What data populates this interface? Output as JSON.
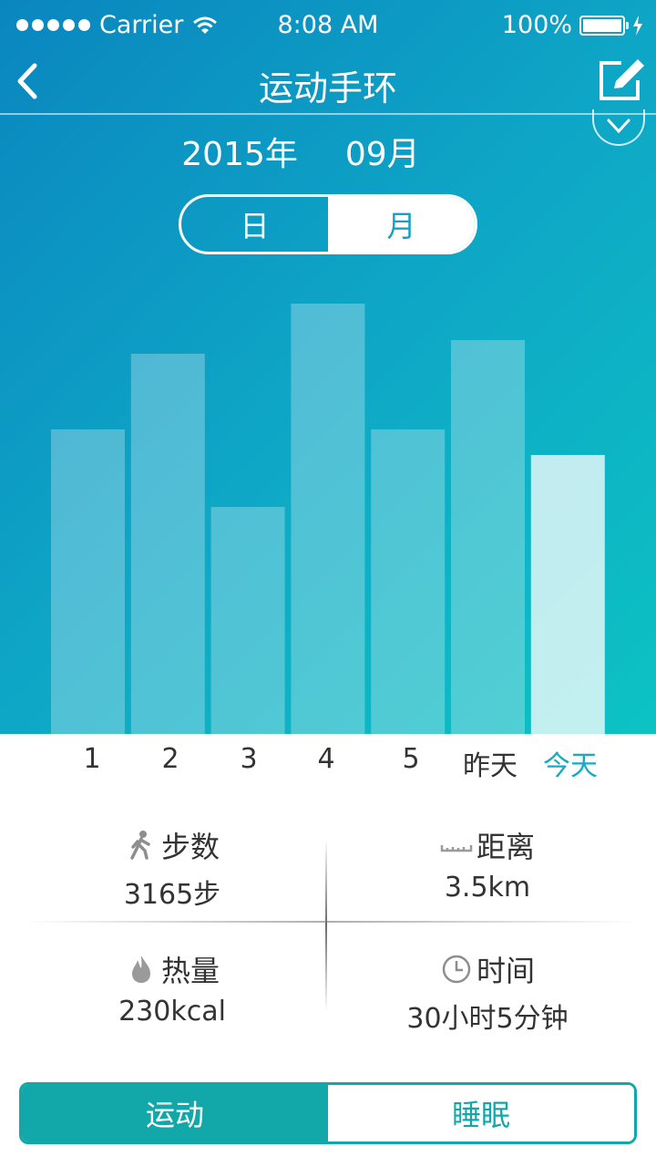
{
  "status_bar": {
    "carrier": "Carrier",
    "time": "8:08 AM",
    "battery": "100%"
  },
  "nav": {
    "title": "运动手环"
  },
  "date": {
    "year": "2015年",
    "month": "09月"
  },
  "toggle": {
    "day": "日",
    "month": "月",
    "selected": "月"
  },
  "chart_data": {
    "type": "bar",
    "categories": [
      "1",
      "2",
      "3",
      "4",
      "5",
      "昨天",
      "今天"
    ],
    "values": [
      334,
      417,
      249,
      472,
      334,
      432,
      306
    ],
    "ylim": [
      0,
      515
    ],
    "highlight": "今天",
    "bar_color": "#ffffff"
  },
  "stats": {
    "steps": {
      "label": "步数",
      "value": "3165步"
    },
    "distance": {
      "label": "距离",
      "value": "3.5km"
    },
    "calories": {
      "label": "热量",
      "value": "230kcal"
    },
    "time": {
      "label": "时间",
      "value": "30小时5分钟"
    }
  },
  "tabs": {
    "sport": "运动",
    "sleep": "睡眠",
    "selected": "运动"
  },
  "colors": {
    "accent": "#12a8aa",
    "today": "#16aac4",
    "gradient_start": "#0a86bf",
    "gradient_end": "#0cc3c3"
  }
}
